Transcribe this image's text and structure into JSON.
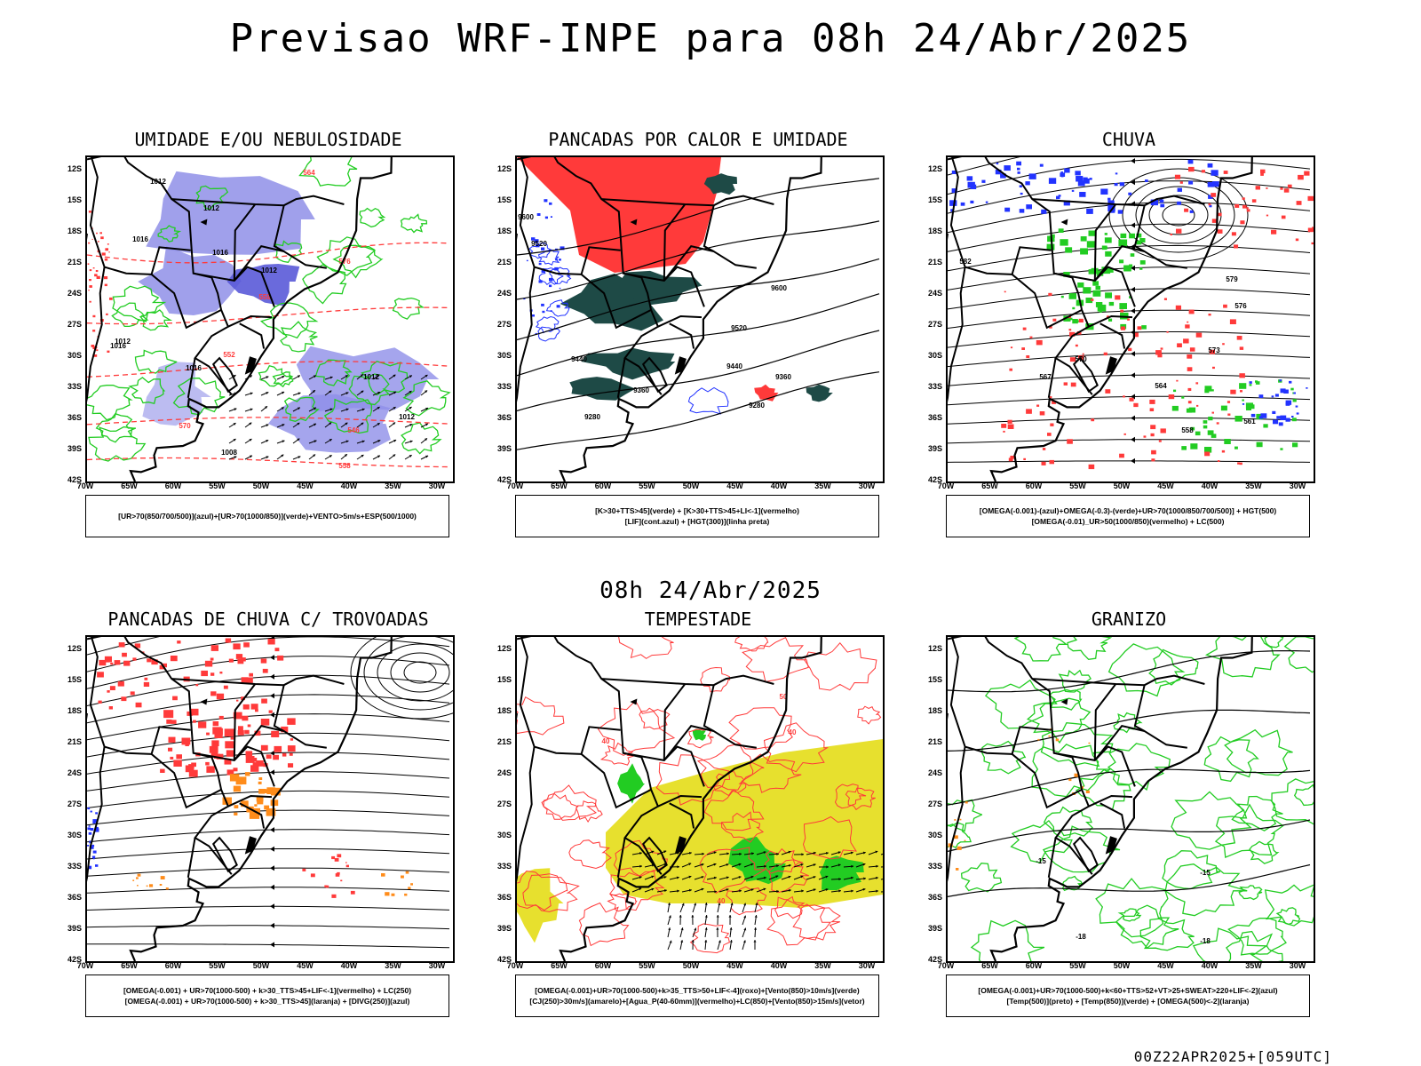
{
  "title": "Previsao WRF-INPE  para 08h 24/Abr/2025",
  "middle_time": "08h 24/Abr/2025",
  "footer": "00Z22APR2025+[059UTC]",
  "axes": {
    "lat_labels": [
      "12S",
      "15S",
      "18S",
      "21S",
      "24S",
      "27S",
      "30S",
      "33S",
      "36S",
      "39S",
      "42S"
    ],
    "lon_labels": [
      "70W",
      "65W",
      "60W",
      "55W",
      "50W",
      "45W",
      "40W",
      "35W",
      "30W"
    ]
  },
  "colors": {
    "blue_humid": "#8f8fe8",
    "green": "#22cc22",
    "red": "#ff3a3a",
    "dark_teal": "#1e4a46",
    "yellow": "#e7e02e",
    "orange": "#ff8c1a",
    "blue_dark": "#2233ff"
  },
  "panels": [
    {
      "title": "UMIDADE E/OU NEBULOSIDADE",
      "legend": [
        "[UR>70(850/700/500)](azul)+[UR>70(1000/850)](verde)+VENTO>5m/s+ESP(500/1000)"
      ],
      "contour_labels": [
        "1012",
        "1012",
        "1016",
        "1016",
        "1012",
        "1012",
        "1016",
        "1012",
        "1012",
        "1008",
        "1016",
        "570",
        "576",
        "564",
        "558",
        "552",
        "546",
        "558"
      ]
    },
    {
      "title": "PANCADAS POR CALOR E UMIDADE",
      "legend": [
        "[K>30+TTS>45](verde) + [K>30+TTS>45+LI<-1](vermelho)",
        "[LIF](cont.azul) + [HGT(300)](linha preta)"
      ],
      "contour_labels": [
        "9600",
        "9600",
        "9520",
        "9520",
        "9440",
        "9440",
        "9360",
        "9360",
        "9280",
        "9280"
      ]
    },
    {
      "title": "CHUVA",
      "legend": [
        "[OMEGA(-0.001)-(azul)+OMEGA(-0.3)-(verde)+UR>70(1000/850/700/500)] + HGT(500)",
        "[OMEGA(-0.01)_UR>50(1000/850)(vermelho) + LC(500)"
      ],
      "contour_labels": [
        "582",
        "579",
        "576",
        "573",
        "570",
        "567",
        "564",
        "561",
        "558"
      ]
    },
    {
      "title": "PANCADAS DE CHUVA C/ TROVOADAS",
      "legend": [
        "[OMEGA(-0.001) + UR>70(1000-500) + k>30_TTS>45+LIF<-1](vermelho) + LC(250)",
        "[OMEGA(-0.001) + UR>70(1000-500) + k>30_TTS>45](laranja) + [DIVG(250)](azul)"
      ],
      "contour_labels": []
    },
    {
      "title": "TEMPESTADE",
      "legend": [
        "[OMEGA(-0.001)+UR>70(1000-500)+k>35_TTS>50+LIF<-4](roxo)+[Vento(850)>10m/s](verde)",
        "[CJ(250)>30m/s](amarelo)+[Agua_P(40-60mm)](vermelho)+LC(850)+[Vento(850)>15m/s](vetor)"
      ],
      "contour_labels": [
        "40",
        "50",
        "40",
        "40"
      ]
    },
    {
      "title": "GRANIZO",
      "legend": [
        "[OMEGA(-0.001)+UR>70(1000-500)+k<60+TTS>52+VT>25+SWEAT>220+LIF<-2](azul)",
        "[Temp(500)](preto) + [Temp(850)](verde) + [OMEGA(500)<-2](laranja)"
      ],
      "contour_labels": [
        "-15",
        "-15",
        "-18",
        "-18"
      ]
    }
  ]
}
